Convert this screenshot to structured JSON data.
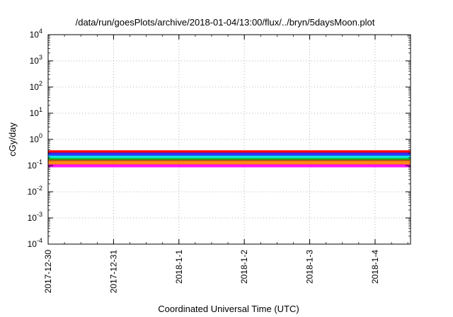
{
  "chart_data": {
    "type": "area",
    "title": "/data/run/goesPlots/archive/2018-01-04/13:00/flux/../bryn/5daysMoon.plot",
    "xlabel": "Coordinated Universal Time (UTC)",
    "ylabel": "cGy/day",
    "yscale": "log",
    "ylim": [
      0.0001,
      10000
    ],
    "yticks": [
      {
        "value": 0.0001,
        "base": "10",
        "exp": "-4"
      },
      {
        "value": 0.001,
        "base": "10",
        "exp": "-3"
      },
      {
        "value": 0.01,
        "base": "10",
        "exp": "-2"
      },
      {
        "value": 0.1,
        "base": "10",
        "exp": "-1"
      },
      {
        "value": 1,
        "base": "10",
        "exp": "0"
      },
      {
        "value": 10,
        "base": "10",
        "exp": "1"
      },
      {
        "value": 100,
        "base": "10",
        "exp": "2"
      },
      {
        "value": 1000,
        "base": "10",
        "exp": "3"
      },
      {
        "value": 10000,
        "base": "10",
        "exp": "4"
      }
    ],
    "xlim": [
      "2017-12-30T00:00",
      "2018-01-04T13:00"
    ],
    "xticks": [
      {
        "date": "2017-12-30T00:00",
        "label": "2017-12-30"
      },
      {
        "date": "2017-12-31T00:00",
        "label": "2017-12-31"
      },
      {
        "date": "2018-01-01T00:00",
        "label": "2018-1-1"
      },
      {
        "date": "2018-01-02T00:00",
        "label": "2018-1-2"
      },
      {
        "date": "2018-01-03T00:00",
        "label": "2018-1-3"
      },
      {
        "date": "2018-01-04T00:00",
        "label": "2018-1-4"
      }
    ],
    "grid": true,
    "series": [
      {
        "color": "#ff00ff",
        "typical": 0.11,
        "x": [
          "2017-12-30T00:00",
          "2018-01-04T13:00"
        ],
        "values": [
          0.11,
          0.11
        ]
      },
      {
        "color": "#ff8000",
        "typical": 0.15,
        "x": [
          "2017-12-30T00:00",
          "2018-01-04T13:00"
        ],
        "values": [
          0.15,
          0.15
        ]
      },
      {
        "color": "#a0522d",
        "typical": 0.17,
        "x": [
          "2017-12-30T00:00",
          "2018-01-04T13:00"
        ],
        "values": [
          0.17,
          0.17
        ]
      },
      {
        "color": "#00c000",
        "typical": 0.19,
        "x": [
          "2017-12-30T00:00",
          "2018-01-04T13:00"
        ],
        "values": [
          0.19,
          0.19
        ]
      },
      {
        "color": "#00e0e0",
        "typical": 0.24,
        "x": [
          "2017-12-30T00:00",
          "2018-01-04T13:00"
        ],
        "values": [
          0.24,
          0.24
        ]
      },
      {
        "color": "#2020ff",
        "typical": 0.31,
        "x": [
          "2017-12-30T00:00",
          "2018-01-04T13:00"
        ],
        "values": [
          0.31,
          0.31
        ]
      },
      {
        "color": "#ff0000",
        "typical": 0.36,
        "x": [
          "2017-12-30T00:00",
          "2018-01-04T13:00"
        ],
        "values": [
          0.36,
          0.36
        ]
      }
    ]
  }
}
